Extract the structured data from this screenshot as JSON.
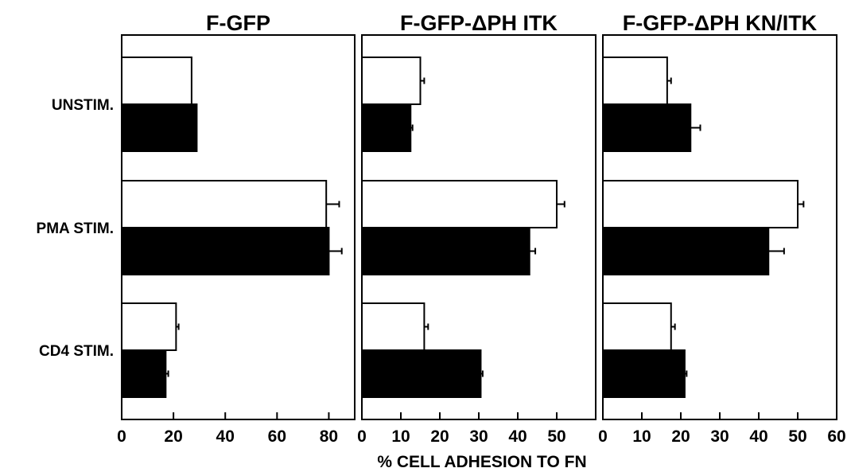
{
  "chart_data": {
    "type": "bar",
    "orientation": "horizontal",
    "xlabel": "% CELL ADHESION TO FN",
    "categories": [
      "UNSTIM.",
      "PMA STIM.",
      "CD4 STIM."
    ],
    "fill_colors": [
      "#ffffff",
      "#000000"
    ],
    "panels": [
      {
        "title": "F-GFP",
        "xlim": [
          0,
          90
        ],
        "ticks": [
          0,
          20,
          40,
          60,
          80
        ],
        "series": [
          {
            "values": [
              27,
              79,
              21
            ],
            "errors": [
              0,
              5,
              1
            ]
          },
          {
            "values": [
              29,
              80,
              17
            ],
            "errors": [
              0,
              5,
              1
            ]
          }
        ]
      },
      {
        "title": "F-GFP-ΔPH ITK",
        "xlim": [
          0,
          60
        ],
        "ticks": [
          0,
          10,
          20,
          30,
          40,
          50
        ],
        "series": [
          {
            "values": [
              15,
              50,
              16
            ],
            "errors": [
              1,
              2,
              1
            ]
          },
          {
            "values": [
              12.5,
              43,
              30.5
            ],
            "errors": [
              0.5,
              1.5,
              0.5
            ]
          }
        ]
      },
      {
        "title": "F-GFP-ΔPH KN/ITK",
        "xlim": [
          0,
          60
        ],
        "ticks": [
          0,
          10,
          20,
          30,
          40,
          50,
          60
        ],
        "series": [
          {
            "values": [
              16.5,
              50,
              17.5
            ],
            "errors": [
              1,
              1.5,
              1
            ]
          },
          {
            "values": [
              22.5,
              42.5,
              21
            ],
            "errors": [
              2.5,
              4,
              0.5
            ]
          }
        ]
      }
    ]
  }
}
